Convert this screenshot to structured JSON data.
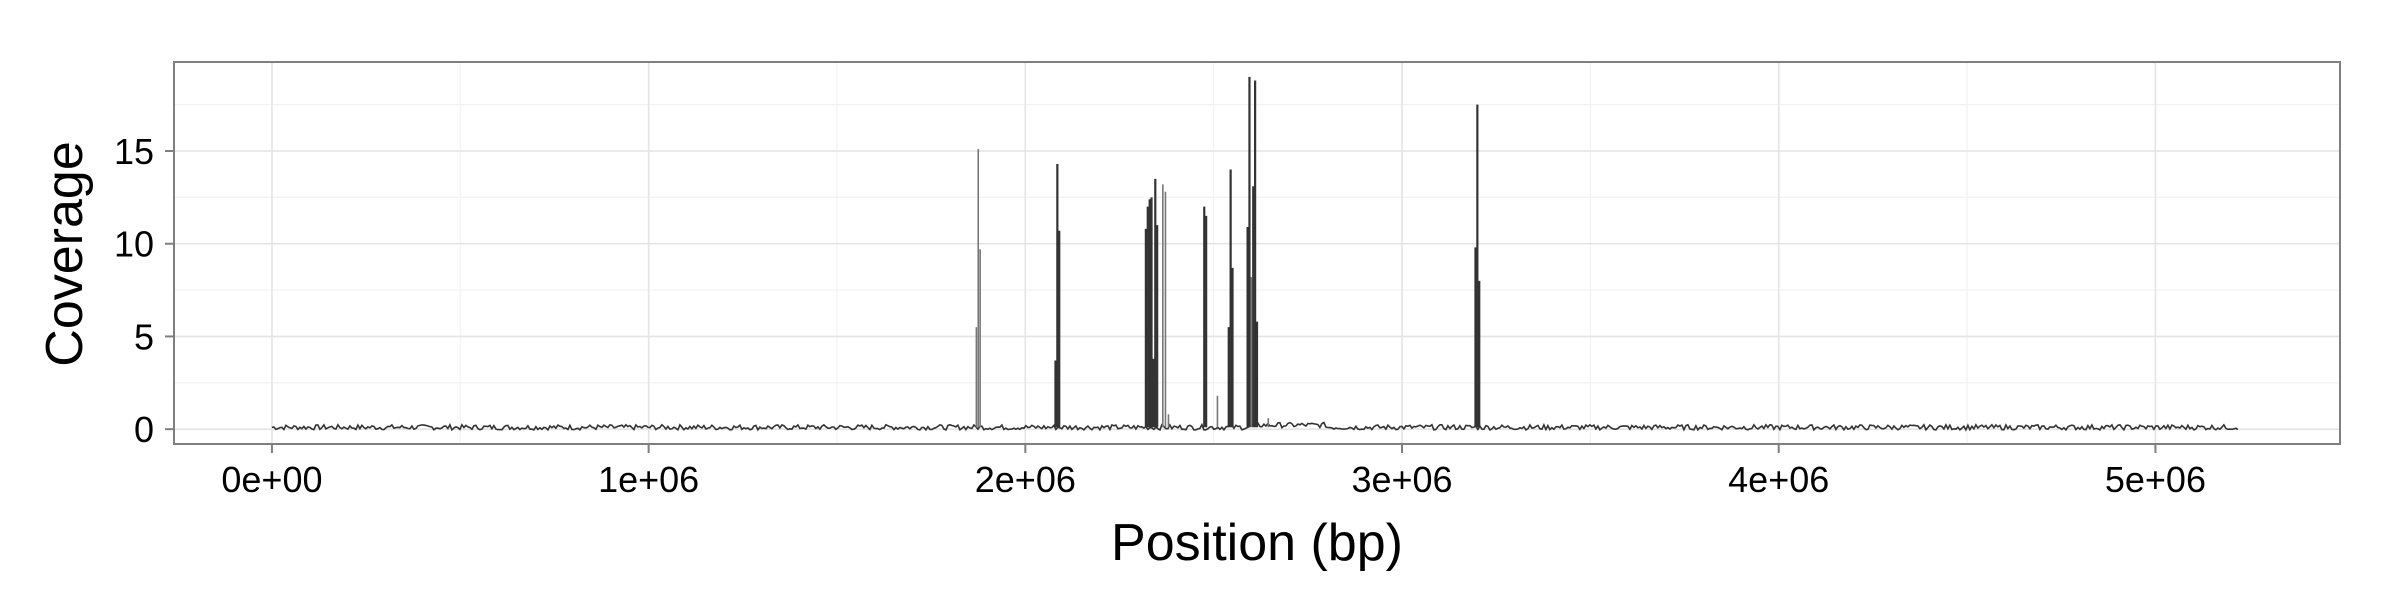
{
  "chart_data": {
    "type": "line",
    "title": "",
    "xlabel": "Position (bp)",
    "ylabel": "Coverage",
    "xlim": [
      -260000,
      5490000
    ],
    "ylim": [
      -0.8,
      19.8
    ],
    "grid": true,
    "legend": "none",
    "colors": {
      "line": "#333333",
      "light_line": "#777777",
      "grid_major": "#e4e4e4",
      "grid_minor": "#f2f2f2",
      "panel_border": "#7f7f7f",
      "background": "#ffffff"
    },
    "x_ticks": [
      {
        "value": 0,
        "label": "0e+00"
      },
      {
        "value": 1000000,
        "label": "1e+06"
      },
      {
        "value": 2000000,
        "label": "2e+06"
      },
      {
        "value": 3000000,
        "label": "3e+06"
      },
      {
        "value": 4000000,
        "label": "4e+06"
      },
      {
        "value": 5000000,
        "label": "5e+06"
      }
    ],
    "y_ticks": [
      {
        "value": 0,
        "label": "0"
      },
      {
        "value": 5,
        "label": "5"
      },
      {
        "value": 10,
        "label": "10"
      },
      {
        "value": 15,
        "label": "15"
      }
    ],
    "baseline": {
      "x_start": 0,
      "x_end": 5220000,
      "value": 0.1
    },
    "series": [
      {
        "values": [
          {
            "x": 1870000,
            "y": 5.5,
            "light": true
          },
          {
            "x": 1875000,
            "y": 15.1,
            "light": true
          },
          {
            "x": 1880000,
            "y": 9.7,
            "light": true
          },
          {
            "x": 2080000,
            "y": 3.7
          },
          {
            "x": 2085000,
            "y": 14.3
          },
          {
            "x": 2090000,
            "y": 10.7
          },
          {
            "x": 2320000,
            "y": 10.8
          },
          {
            "x": 2325000,
            "y": 12.0
          },
          {
            "x": 2330000,
            "y": 12.4
          },
          {
            "x": 2335000,
            "y": 12.5
          },
          {
            "x": 2340000,
            "y": 3.8
          },
          {
            "x": 2345000,
            "y": 13.5
          },
          {
            "x": 2350000,
            "y": 11.0
          },
          {
            "x": 2365000,
            "y": 13.2,
            "light": true
          },
          {
            "x": 2372000,
            "y": 12.8,
            "light": true
          },
          {
            "x": 2380000,
            "y": 0.8,
            "light": true
          },
          {
            "x": 2475000,
            "y": 12.0
          },
          {
            "x": 2480000,
            "y": 11.5
          },
          {
            "x": 2510000,
            "y": 1.8,
            "light": true
          },
          {
            "x": 2540000,
            "y": 5.5
          },
          {
            "x": 2545000,
            "y": 14.0
          },
          {
            "x": 2550000,
            "y": 8.7
          },
          {
            "x": 2590000,
            "y": 10.9
          },
          {
            "x": 2595000,
            "y": 19.0
          },
          {
            "x": 2600000,
            "y": 8.2,
            "light": true
          },
          {
            "x": 2605000,
            "y": 13.1
          },
          {
            "x": 2610000,
            "y": 18.8
          },
          {
            "x": 2615000,
            "y": 5.8
          },
          {
            "x": 2645000,
            "y": 0.6,
            "light": true
          },
          {
            "x": 3195000,
            "y": 9.8
          },
          {
            "x": 3200000,
            "y": 17.5
          },
          {
            "x": 3205000,
            "y": 8.0
          }
        ]
      }
    ]
  }
}
